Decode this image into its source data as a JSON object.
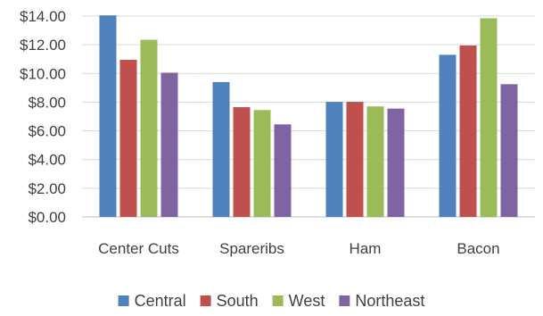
{
  "chart_data": {
    "type": "bar",
    "categories": [
      "Center Cuts",
      "Spareribs",
      "Ham",
      "Bacon"
    ],
    "series": [
      {
        "name": "Central",
        "color": "#4F81BD",
        "values": [
          14.05,
          9.4,
          8.02,
          11.3
        ]
      },
      {
        "name": "South",
        "color": "#C0504D",
        "values": [
          10.95,
          7.65,
          8.02,
          11.95
        ]
      },
      {
        "name": "West",
        "color": "#9BBB59",
        "values": [
          12.35,
          7.45,
          7.7,
          13.85
        ]
      },
      {
        "name": "Northeast",
        "color": "#8064A2",
        "values": [
          10.05,
          6.45,
          7.55,
          9.25
        ]
      }
    ],
    "yticks": [
      "$0.00",
      "$2.00",
      "$4.00",
      "$6.00",
      "$8.00",
      "$10.00",
      "$12.00",
      "$14.00"
    ],
    "ylim": [
      0,
      14
    ],
    "grid": true,
    "legend": "bottom"
  }
}
